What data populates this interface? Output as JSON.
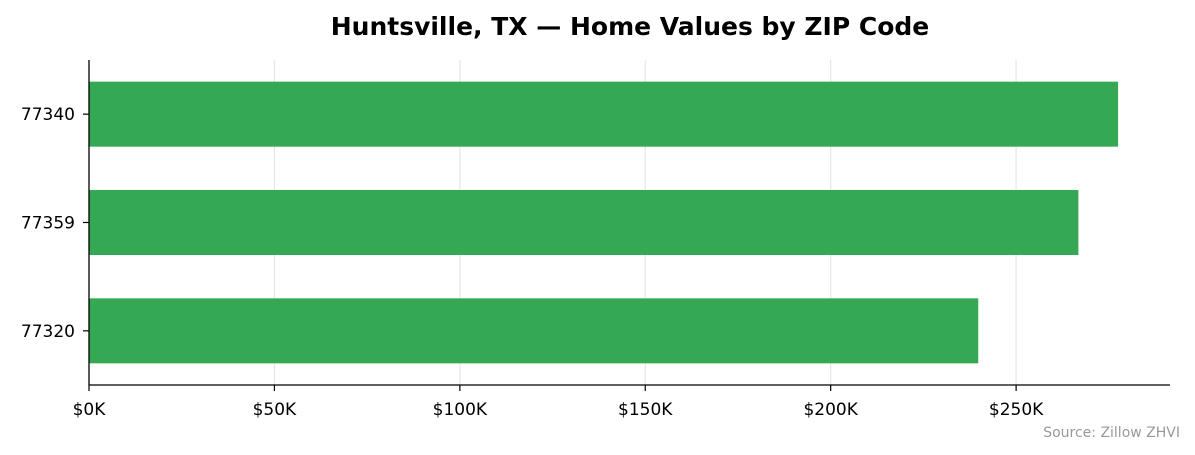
{
  "chart_data": {
    "type": "bar",
    "orientation": "horizontal",
    "title": "Huntsville, TX — Home Values by ZIP Code",
    "xlabel": "",
    "ylabel": "",
    "categories": [
      "77340",
      "77359",
      "77320"
    ],
    "values": [
      277500,
      266800,
      239800
    ],
    "xlim": [
      0,
      291500
    ],
    "xticks": [
      0,
      50000,
      100000,
      150000,
      200000,
      250000
    ],
    "xtick_labels": [
      "$0K",
      "$50K",
      "$100K",
      "$150K",
      "$200K",
      "$250K"
    ],
    "grid": "vertical",
    "bar_color": "#34a853",
    "grid_color": "#e6e6e6",
    "source": "Source: Zillow ZHVI"
  }
}
